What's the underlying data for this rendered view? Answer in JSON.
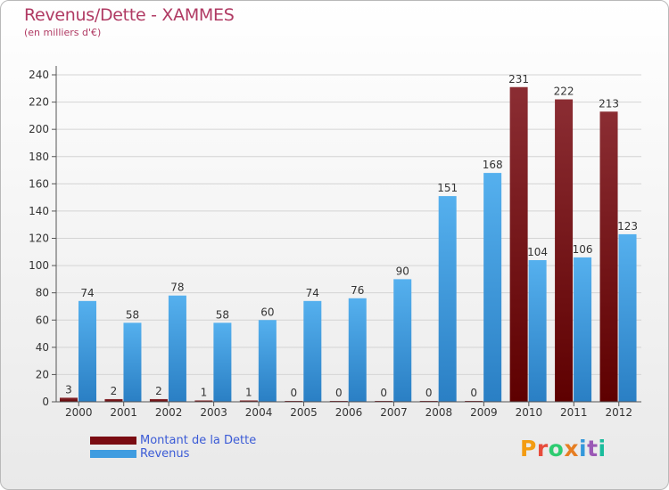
{
  "title": "Revenus/Dette - XAMMES",
  "subtitle": "(en milliers d'€)",
  "logo": {
    "letters": [
      "P",
      "r",
      "o",
      "x",
      "i",
      "t",
      "i"
    ],
    "colors": [
      "#f39c12",
      "#e74c3c",
      "#2ecc71",
      "#e67e22",
      "#3498db",
      "#9b59b6",
      "#1abc9c"
    ]
  },
  "chart_data": {
    "type": "bar",
    "title": "Revenus/Dette - XAMMES",
    "subtitle": "(en milliers d'€)",
    "categories": [
      "2000",
      "2001",
      "2002",
      "2003",
      "2004",
      "2005",
      "2006",
      "2007",
      "2008",
      "2009",
      "2010",
      "2011",
      "2012"
    ],
    "series": [
      {
        "name": "Montant de la Dette",
        "color": "#7a0c12",
        "values": [
          3,
          2,
          2,
          1,
          1,
          0,
          0,
          0,
          0,
          0,
          231,
          222,
          213
        ]
      },
      {
        "name": "Revenus",
        "color": "#3f9ce0",
        "values": [
          74,
          58,
          78,
          58,
          60,
          74,
          76,
          90,
          151,
          168,
          104,
          106,
          123
        ]
      }
    ],
    "ylim": [
      0,
      240
    ],
    "yticks": [
      0,
      20,
      40,
      60,
      80,
      100,
      120,
      140,
      160,
      180,
      200,
      220,
      240
    ],
    "grid": true,
    "legend_position": "bottom-left"
  }
}
